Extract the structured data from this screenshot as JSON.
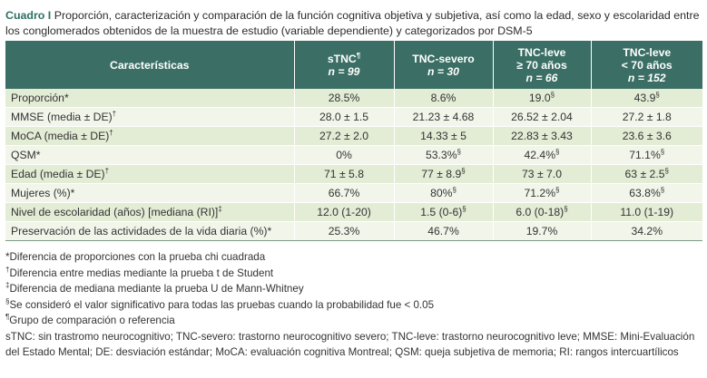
{
  "caption": {
    "label": "Cuadro I",
    "text": "Proporción, caracterización y comparación de la función cognitiva objetiva y subjetiva, así como la edad, sexo y escolaridad entre los conglomerados obtenidos de la muestra de estudio (variable dependiente) y categorizados por DSM-5"
  },
  "table": {
    "headers": [
      {
        "line1": "Características",
        "line2": "",
        "sup": "",
        "n": ""
      },
      {
        "line1": "sTNC",
        "sup": "¶",
        "n": "n = 99"
      },
      {
        "line1": "TNC-severo",
        "sup": "",
        "n": "n = 30"
      },
      {
        "line1": "TNC-leve",
        "line2": "≥ 70 años",
        "sup": "",
        "n": "n = 66"
      },
      {
        "line1": "TNC-leve",
        "line2": "< 70 años",
        "sup": "",
        "n": "n = 152"
      }
    ],
    "rows": [
      {
        "label": "Proporción*",
        "label_sup": "",
        "cells": [
          {
            "v": "28.5%",
            "s": ""
          },
          {
            "v": "8.6%",
            "s": ""
          },
          {
            "v": "19.0",
            "s": "§"
          },
          {
            "v": "43.9",
            "s": "§"
          }
        ]
      },
      {
        "label": "MMSE (media ± DE)",
        "label_sup": "†",
        "cells": [
          {
            "v": "28.0 ± 1.5",
            "s": ""
          },
          {
            "v": "21.23 ± 4.68",
            "s": ""
          },
          {
            "v": "26.52 ± 2.04",
            "s": ""
          },
          {
            "v": "27.2 ± 1.8",
            "s": ""
          }
        ]
      },
      {
        "label": "MoCA (media ± DE)",
        "label_sup": "†",
        "cells": [
          {
            "v": "27.2 ± 2.0",
            "s": ""
          },
          {
            "v": "14.33 ± 5",
            "s": ""
          },
          {
            "v": "22.83 ± 3.43",
            "s": ""
          },
          {
            "v": "23.6 ± 3.6",
            "s": ""
          }
        ]
      },
      {
        "label": "QSM*",
        "label_sup": "",
        "cells": [
          {
            "v": "0%",
            "s": ""
          },
          {
            "v": "53.3%",
            "s": "§"
          },
          {
            "v": "42.4%",
            "s": "§"
          },
          {
            "v": "71.1%",
            "s": "§"
          }
        ]
      },
      {
        "label": "Edad (media ± DE)",
        "label_sup": "†",
        "cells": [
          {
            "v": "71 ± 5.8",
            "s": ""
          },
          {
            "v": "77 ± 8.9",
            "s": "§"
          },
          {
            "v": "73 ± 7.0",
            "s": ""
          },
          {
            "v": "63 ± 2.5",
            "s": "§"
          }
        ]
      },
      {
        "label": "Mujeres (%)*",
        "label_sup": "",
        "cells": [
          {
            "v": "66.7%",
            "s": ""
          },
          {
            "v": "80%",
            "s": "§"
          },
          {
            "v": "71.2%",
            "s": "§"
          },
          {
            "v": "63.8%",
            "s": "§"
          }
        ]
      },
      {
        "label": "Nivel de escolaridad (años) [mediana (RI)]",
        "label_sup": "‡",
        "cells": [
          {
            "v": "12.0 (1-20)",
            "s": ""
          },
          {
            "v": "1.5 (0-6)",
            "s": "§"
          },
          {
            "v": "6.0 (0-18)",
            "s": "§"
          },
          {
            "v": "11.0 (1-19)",
            "s": ""
          }
        ]
      },
      {
        "label": "Preservación de las actividades de la vida diaria (%)*",
        "label_sup": "",
        "cells": [
          {
            "v": "25.3%",
            "s": ""
          },
          {
            "v": "46.7%",
            "s": ""
          },
          {
            "v": "19.7%",
            "s": ""
          },
          {
            "v": "34.2%",
            "s": ""
          }
        ]
      }
    ]
  },
  "notes": [
    {
      "mark": "",
      "text": "*Diferencia de proporciones con la prueba chi cuadrada"
    },
    {
      "mark": "†",
      "text": "Diferencia entre medias mediante la prueba t de Student"
    },
    {
      "mark": "‡",
      "text": "Diferencia de mediana mediante la prueba U de Mann-Whitney"
    },
    {
      "mark": "§",
      "text": "Se consideró el valor significativo para todas las pruebas cuando la probabilidad fue < 0.05"
    },
    {
      "mark": "¶",
      "text": "Grupo de comparación o referencia"
    },
    {
      "mark": "",
      "text": "sTNC: sin trastromo neurocognitivo; TNC-severo: trastorno neurocognitivo severo; TNC-leve: trastorno neurocognitivo leve; MMSE: Mini-Evaluación del Estado Mental; DE: desviación estándar; MoCA: evaluación cognitiva Montreal; QSM: queja subjetiva de memoria; RI: rangos intercuartílicos"
    }
  ]
}
